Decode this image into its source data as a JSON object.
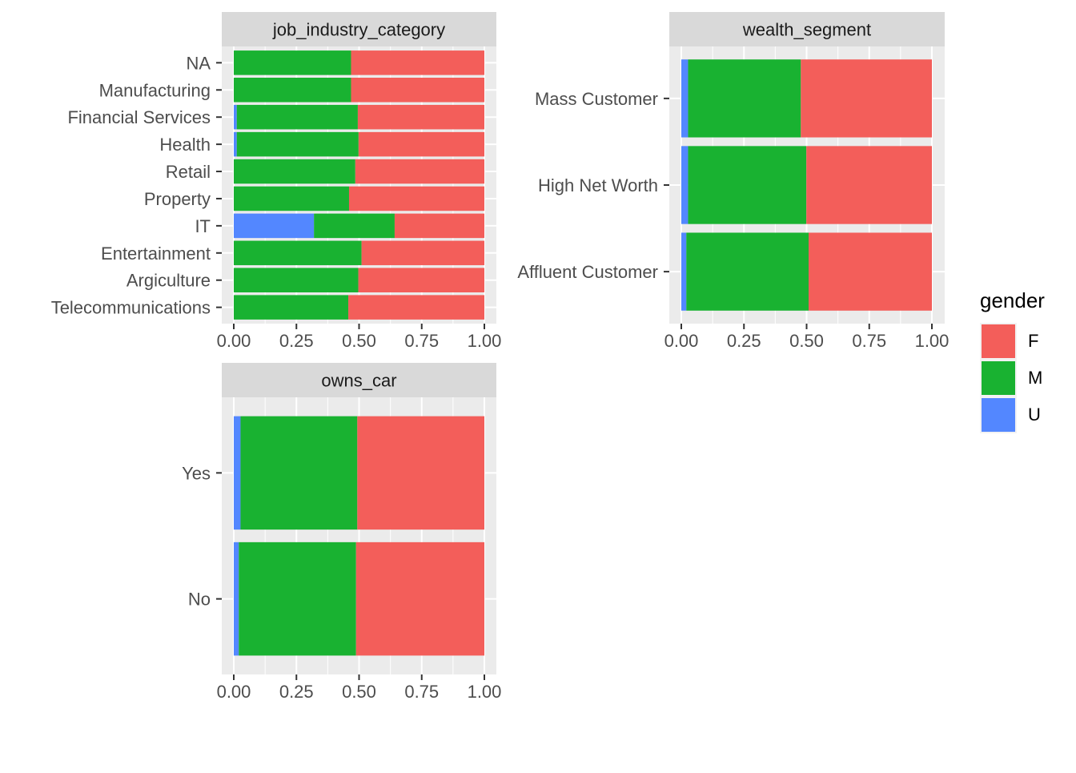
{
  "colors": {
    "F": "#F35E5A",
    "M": "#19B231",
    "U": "#5387FF",
    "panel_bg": "#EBEBEB",
    "strip_bg": "#D9D9D9",
    "grid": "#FFFFFF",
    "text": "#4D4D4D"
  },
  "legend": {
    "title": "gender",
    "items": [
      {
        "key": "F",
        "label": "F"
      },
      {
        "key": "M",
        "label": "M"
      },
      {
        "key": "U",
        "label": "U"
      }
    ]
  },
  "chart_data": [
    {
      "type": "bar",
      "orientation": "horizontal",
      "stacked": "fill",
      "title": "job_industry_category",
      "xlabel": "",
      "ylabel": "",
      "xlim": [
        0,
        1
      ],
      "xticks": [
        "0.00",
        "0.25",
        "0.50",
        "0.75",
        "1.00"
      ],
      "grid": true,
      "categories": [
        "NA",
        "Manufacturing",
        "Financial Services",
        "Health",
        "Retail",
        "Property",
        "IT",
        "Entertainment",
        "Argiculture",
        "Telecommunications"
      ],
      "series": [
        {
          "name": "U",
          "values": [
            0.0,
            0.0,
            0.012,
            0.012,
            0.0,
            0.0,
            0.32,
            0.0,
            0.0,
            0.0
          ]
        },
        {
          "name": "M",
          "values": [
            0.468,
            0.468,
            0.483,
            0.486,
            0.485,
            0.46,
            0.322,
            0.51,
            0.497,
            0.457
          ]
        },
        {
          "name": "F",
          "values": [
            0.532,
            0.532,
            0.505,
            0.502,
            0.515,
            0.54,
            0.358,
            0.49,
            0.503,
            0.543
          ]
        }
      ]
    },
    {
      "type": "bar",
      "orientation": "horizontal",
      "stacked": "fill",
      "title": "wealth_segment",
      "xlabel": "",
      "ylabel": "",
      "xlim": [
        0,
        1
      ],
      "xticks": [
        "0.00",
        "0.25",
        "0.50",
        "0.75",
        "1.00"
      ],
      "grid": true,
      "categories": [
        "Mass Customer",
        "High Net Worth",
        "Affluent Customer"
      ],
      "series": [
        {
          "name": "U",
          "values": [
            0.027,
            0.027,
            0.02
          ]
        },
        {
          "name": "M",
          "values": [
            0.45,
            0.472,
            0.488
          ]
        },
        {
          "name": "F",
          "values": [
            0.523,
            0.501,
            0.492
          ]
        }
      ]
    },
    {
      "type": "bar",
      "orientation": "horizontal",
      "stacked": "fill",
      "title": "owns_car",
      "xlabel": "",
      "ylabel": "",
      "xlim": [
        0,
        1
      ],
      "xticks": [
        "0.00",
        "0.25",
        "0.50",
        "0.75",
        "1.00"
      ],
      "grid": true,
      "categories": [
        "Yes",
        "No"
      ],
      "series": [
        {
          "name": "U",
          "values": [
            0.027,
            0.02
          ]
        },
        {
          "name": "M",
          "values": [
            0.466,
            0.468
          ]
        },
        {
          "name": "F",
          "values": [
            0.507,
            0.512
          ]
        }
      ]
    }
  ]
}
